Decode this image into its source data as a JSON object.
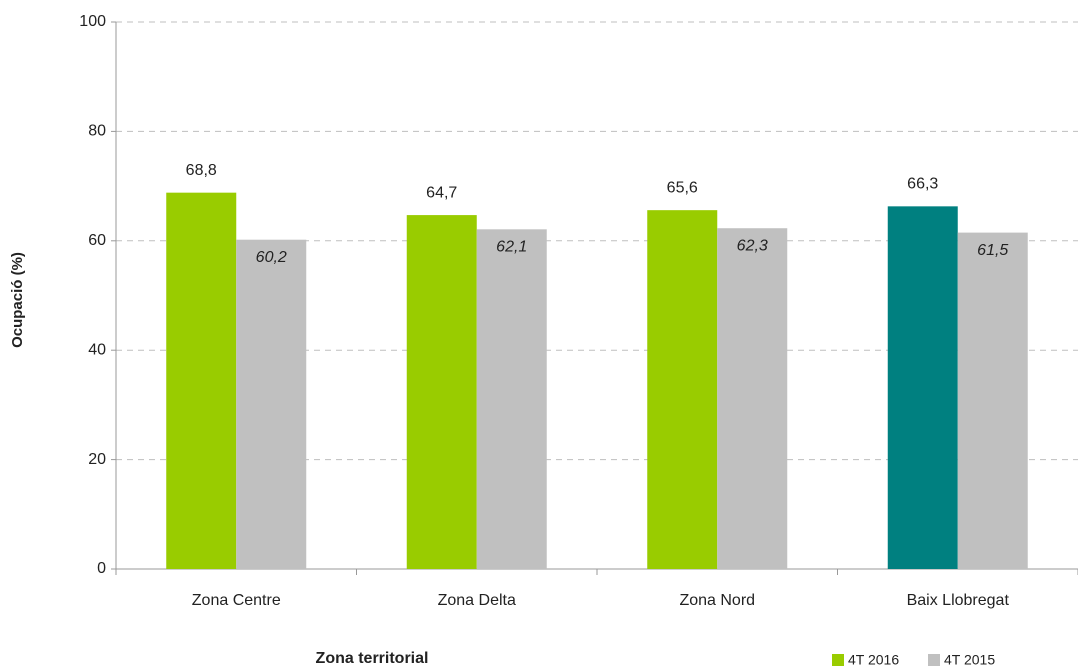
{
  "chart_data": {
    "type": "bar",
    "y_label": "Ocupació (%)",
    "x_label": "Zona territorial",
    "categories": [
      "Zona Centre",
      "Zona Delta",
      "Zona Nord",
      "Baix Llobregat"
    ],
    "series": [
      {
        "name": "4T 2016",
        "color": "#99cc00",
        "colors": [
          "#99cc00",
          "#99cc00",
          "#99cc00",
          "#008080"
        ],
        "values": [
          68.8,
          64.7,
          65.6,
          66.3
        ],
        "value_labels": [
          "68,8",
          "64,7",
          "65,6",
          "66,3"
        ]
      },
      {
        "name": "4T 2015",
        "color": "#c0c0c0",
        "values": [
          60.2,
          62.1,
          62.3,
          61.5
        ],
        "value_labels": [
          "60,2",
          "62,1",
          "62,3",
          "61,5"
        ]
      }
    ],
    "ylim": [
      0,
      100
    ],
    "yticks": [
      0,
      20,
      40,
      60,
      80,
      100
    ],
    "grid": true,
    "legend": "bottom-right"
  }
}
